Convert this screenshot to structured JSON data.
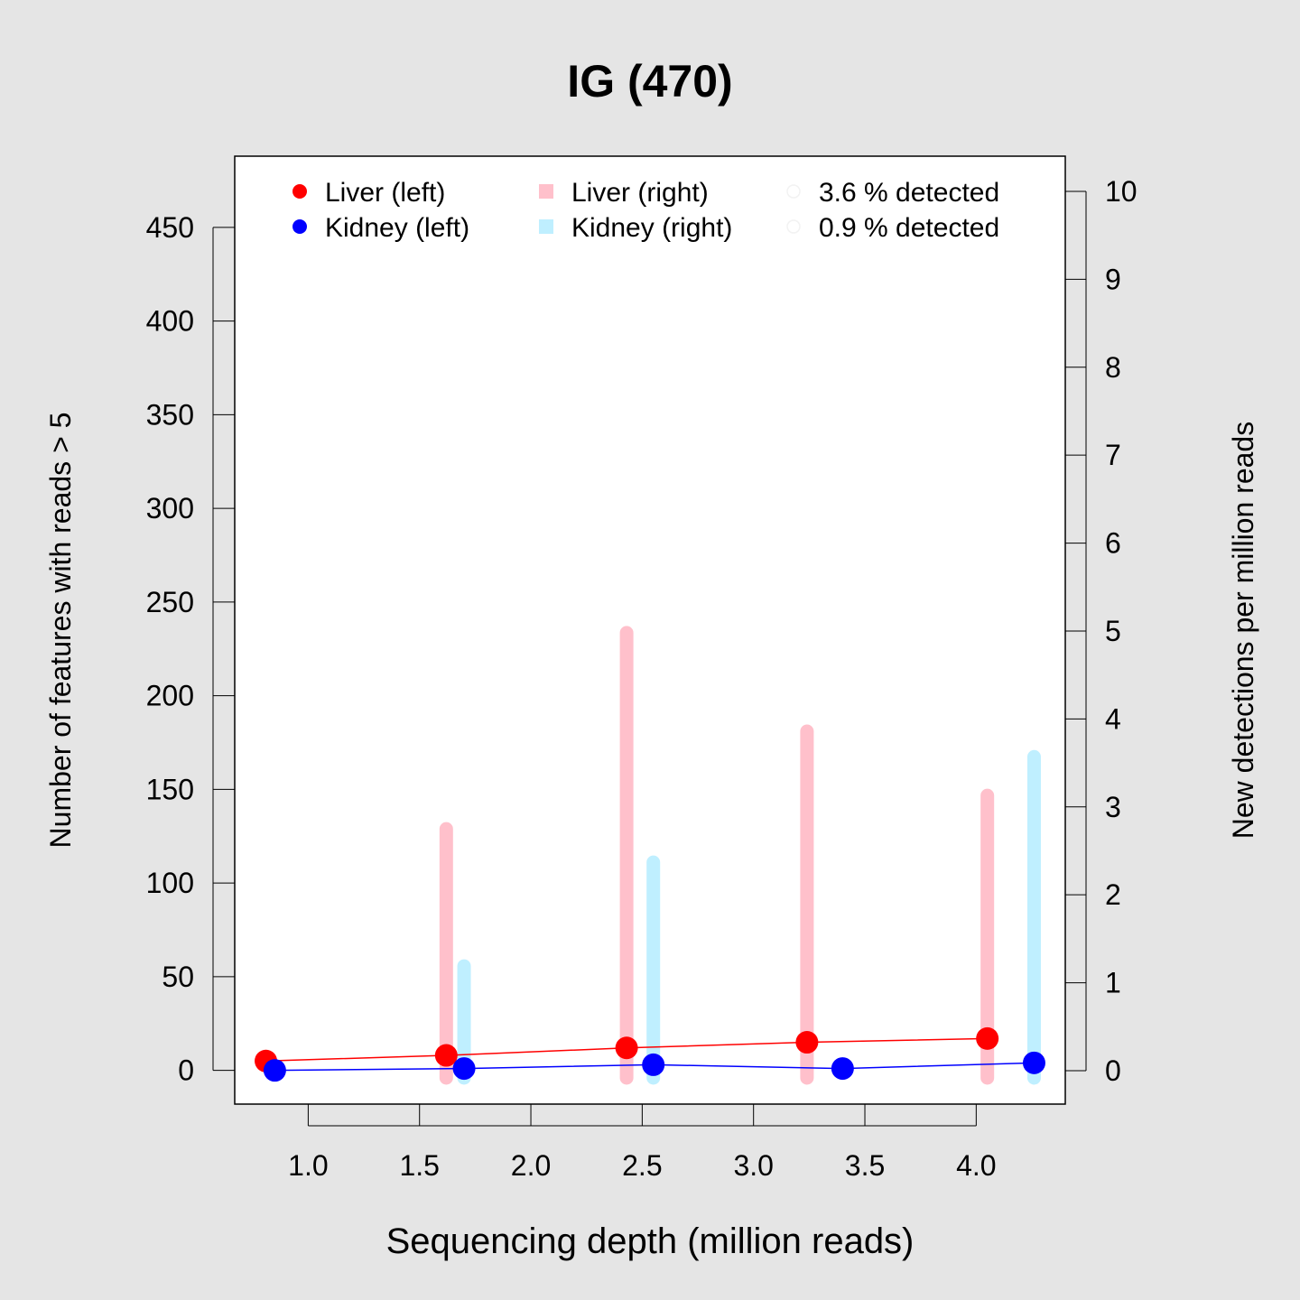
{
  "chart_data": {
    "type": "line",
    "title": "IG (470)",
    "xlabel": "Sequencing depth (million reads)",
    "ylabel": "Number of features with reads > 5",
    "y2label": "New detections per million reads",
    "xlim": [
      0.67,
      4.4
    ],
    "ylim": [
      -18,
      488
    ],
    "y2lim": [
      -0.38,
      10.4
    ],
    "x_ticks": [
      "1.0",
      "1.5",
      "2.0",
      "2.5",
      "3.0",
      "3.5",
      "4.0"
    ],
    "y_ticks": [
      "0",
      "50",
      "100",
      "150",
      "200",
      "250",
      "300",
      "350",
      "400",
      "450"
    ],
    "y2_ticks": [
      "0",
      "1",
      "2",
      "3",
      "4",
      "5",
      "6",
      "7",
      "8",
      "9",
      "10"
    ],
    "grid": false,
    "legend_position": "top",
    "legend": [
      {
        "label": "Liver (left)",
        "color": "#ff0000",
        "marker": "dot"
      },
      {
        "label": "Kidney (left)",
        "color": "#0000ff",
        "marker": "dot"
      },
      {
        "label": "Liver (right)",
        "color": "#ffc0cb",
        "marker": "square"
      },
      {
        "label": "Kidney (right)",
        "color": "#bfefff",
        "marker": "square"
      },
      {
        "label": "3.6 % detected",
        "color": "#ffffff",
        "marker": "circle"
      },
      {
        "label": "0.9 % detected",
        "color": "#ffffff",
        "marker": "circle"
      }
    ],
    "series": [
      {
        "name": "Liver (left)",
        "axis": "left",
        "color": "#ff0000",
        "x": [
          0.81,
          1.62,
          2.43,
          3.24,
          4.05
        ],
        "y": [
          5,
          8,
          12,
          15,
          17
        ]
      },
      {
        "name": "Kidney (left)",
        "axis": "left",
        "color": "#0000ff",
        "x": [
          0.85,
          1.7,
          2.55,
          3.4,
          4.26
        ],
        "y": [
          0,
          1,
          3,
          1,
          4
        ]
      },
      {
        "name": "Liver (right)",
        "axis": "right",
        "color": "#ffc0cb",
        "x": [
          1.62,
          2.43,
          3.24,
          4.05
        ],
        "y": [
          2.75,
          4.98,
          3.86,
          3.13
        ]
      },
      {
        "name": "Kidney (right)",
        "axis": "right",
        "color": "#bfefff",
        "x": [
          1.7,
          2.55,
          3.4,
          4.26
        ],
        "y": [
          1.19,
          2.37,
          0.0,
          3.57
        ]
      }
    ]
  }
}
